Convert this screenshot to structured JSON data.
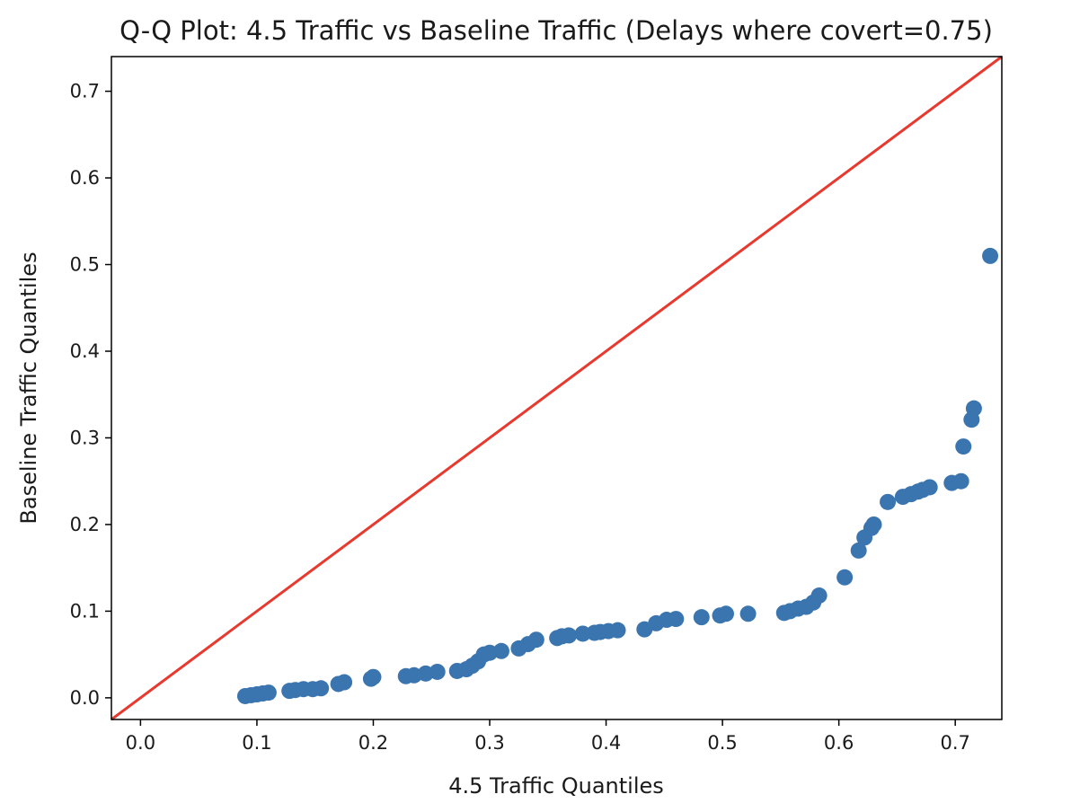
{
  "chart_data": {
    "type": "scatter",
    "title": "Q-Q Plot: 4.5 Traffic vs Baseline Traffic (Delays where covert=0.75)",
    "xlabel": "4.5 Traffic Quantiles",
    "ylabel": "Baseline Traffic Quantiles",
    "xlim": [
      -0.025,
      0.74
    ],
    "ylim": [
      -0.025,
      0.74
    ],
    "xticks": [
      "0.0",
      "0.1",
      "0.2",
      "0.3",
      "0.4",
      "0.5",
      "0.6",
      "0.7"
    ],
    "yticks": [
      "0.0",
      "0.1",
      "0.2",
      "0.3",
      "0.4",
      "0.5",
      "0.6",
      "0.7"
    ],
    "grid": false,
    "colors": {
      "points": "#3a75b0",
      "reference_line": "#e8392f",
      "axes": "#000000"
    },
    "reference_line": {
      "from": [
        -0.025,
        -0.025
      ],
      "to": [
        0.74,
        0.74
      ]
    },
    "series": [
      {
        "x": [
          0.09,
          0.095,
          0.1,
          0.105,
          0.11,
          0.128,
          0.133,
          0.14,
          0.148,
          0.155,
          0.17,
          0.175,
          0.198,
          0.2,
          0.228,
          0.235,
          0.245,
          0.255,
          0.272,
          0.28,
          0.285,
          0.29,
          0.295,
          0.3,
          0.31,
          0.325,
          0.333,
          0.34,
          0.358,
          0.362,
          0.368,
          0.38,
          0.39,
          0.395,
          0.402,
          0.41,
          0.433,
          0.443,
          0.452,
          0.46,
          0.482,
          0.498,
          0.503,
          0.522,
          0.553,
          0.558,
          0.565,
          0.572,
          0.578,
          0.583,
          0.605,
          0.617,
          0.622,
          0.628,
          0.63,
          0.642,
          0.655,
          0.662,
          0.668,
          0.672,
          0.678,
          0.697,
          0.705,
          0.707,
          0.714,
          0.716,
          0.73
        ],
        "y": [
          0.002,
          0.003,
          0.004,
          0.005,
          0.006,
          0.008,
          0.009,
          0.01,
          0.01,
          0.011,
          0.016,
          0.018,
          0.022,
          0.024,
          0.025,
          0.026,
          0.028,
          0.03,
          0.031,
          0.033,
          0.037,
          0.042,
          0.05,
          0.052,
          0.054,
          0.057,
          0.062,
          0.067,
          0.069,
          0.071,
          0.072,
          0.074,
          0.075,
          0.076,
          0.077,
          0.078,
          0.079,
          0.086,
          0.09,
          0.091,
          0.093,
          0.095,
          0.097,
          0.097,
          0.098,
          0.1,
          0.103,
          0.105,
          0.11,
          0.118,
          0.139,
          0.17,
          0.185,
          0.196,
          0.2,
          0.226,
          0.232,
          0.235,
          0.238,
          0.24,
          0.243,
          0.248,
          0.25,
          0.29,
          0.321,
          0.334,
          0.51
        ]
      }
    ]
  }
}
